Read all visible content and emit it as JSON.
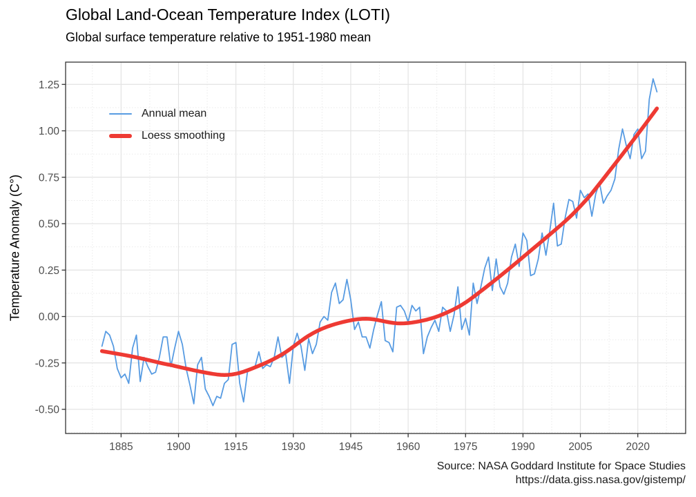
{
  "header": {
    "title": "Global Land-Ocean Temperature Index (LOTI)",
    "subtitle": "Global surface temperature relative to 1951-1980 mean"
  },
  "caption": {
    "line1": "Source: NASA Goddard Institute for Space Studies",
    "line2": "https://data.giss.nasa.gov/gistemp/"
  },
  "legend": {
    "position": "inside-top-left",
    "items": [
      {
        "label": "Annual mean",
        "color": "#579BE2",
        "style": "thin-line"
      },
      {
        "label": "Loess smoothing",
        "color": "#EE3A33",
        "style": "thick-line"
      }
    ]
  },
  "axes": {
    "y_title": "Temperature Anomaly (C°)",
    "x_title": "",
    "x_tick_labels": [
      "1885",
      "1900",
      "1915",
      "1930",
      "1945",
      "1960",
      "1975",
      "1990",
      "2005",
      "2020"
    ],
    "y_tick_labels": [
      "-0.50",
      "-0.25",
      "0.00",
      "0.25",
      "0.50",
      "0.75",
      "1.00",
      "1.25"
    ]
  },
  "chart_data": {
    "type": "line",
    "title": "Global Land-Ocean Temperature Index (LOTI)",
    "subtitle": "Global surface temperature relative to 1951-1980 mean",
    "xlabel": "",
    "ylabel": "Temperature Anomaly (C°)",
    "caption": "Source: NASA Goddard Institute for Space Studies\nhttps://data.giss.nasa.gov/gistemp/",
    "x_start": 1880,
    "x_end": 2025,
    "x_ticks": [
      1885,
      1900,
      1915,
      1930,
      1945,
      1960,
      1975,
      1990,
      2005,
      2020
    ],
    "y_ticks": [
      -0.5,
      -0.25,
      0.0,
      0.25,
      0.5,
      0.75,
      1.0,
      1.25
    ],
    "xlim": [
      1870.5,
      2032.5
    ],
    "ylim": [
      -0.63,
      1.37
    ],
    "grid": true,
    "minor_grid": true,
    "legend_position": "inside-top-left",
    "panel_border_color": "#333333",
    "major_grid_color": "#E3E3E3",
    "minor_grid_color": "#E7E7E7",
    "tick_label_color": "#4D4D4D",
    "series": [
      {
        "name": "Annual mean",
        "color": "#579BE2",
        "stroke_width": 1.8,
        "values": [
          -0.16,
          -0.08,
          -0.1,
          -0.16,
          -0.28,
          -0.33,
          -0.31,
          -0.36,
          -0.17,
          -0.1,
          -0.35,
          -0.22,
          -0.27,
          -0.31,
          -0.3,
          -0.22,
          -0.11,
          -0.11,
          -0.27,
          -0.17,
          -0.08,
          -0.15,
          -0.28,
          -0.37,
          -0.47,
          -0.26,
          -0.22,
          -0.39,
          -0.43,
          -0.48,
          -0.43,
          -0.44,
          -0.36,
          -0.34,
          -0.15,
          -0.14,
          -0.36,
          -0.46,
          -0.3,
          -0.28,
          -0.27,
          -0.19,
          -0.28,
          -0.26,
          -0.27,
          -0.22,
          -0.11,
          -0.22,
          -0.2,
          -0.36,
          -0.16,
          -0.09,
          -0.16,
          -0.29,
          -0.12,
          -0.2,
          -0.15,
          -0.03,
          0.0,
          -0.02,
          0.13,
          0.18,
          0.07,
          0.09,
          0.2,
          0.09,
          -0.07,
          -0.03,
          -0.11,
          -0.11,
          -0.17,
          -0.07,
          0.01,
          0.08,
          -0.13,
          -0.14,
          -0.19,
          0.05,
          0.06,
          0.03,
          -0.03,
          0.06,
          0.03,
          0.05,
          -0.2,
          -0.11,
          -0.06,
          -0.02,
          -0.08,
          0.05,
          0.03,
          -0.08,
          0.01,
          0.16,
          -0.07,
          -0.01,
          -0.1,
          0.18,
          0.07,
          0.16,
          0.26,
          0.32,
          0.14,
          0.31,
          0.16,
          0.12,
          0.18,
          0.32,
          0.39,
          0.27,
          0.45,
          0.41,
          0.22,
          0.23,
          0.31,
          0.45,
          0.33,
          0.46,
          0.61,
          0.38,
          0.39,
          0.53,
          0.63,
          0.62,
          0.53,
          0.68,
          0.64,
          0.66,
          0.54,
          0.66,
          0.72,
          0.61,
          0.65,
          0.68,
          0.74,
          0.9,
          1.01,
          0.92,
          0.85,
          0.98,
          1.01,
          0.85,
          0.89,
          1.17,
          1.28,
          1.21
        ]
      },
      {
        "name": "Loess smoothing",
        "color": "#EE3A33",
        "stroke_width": 5.5,
        "method": "loess of Annual mean",
        "span": 0.25
      }
    ]
  }
}
